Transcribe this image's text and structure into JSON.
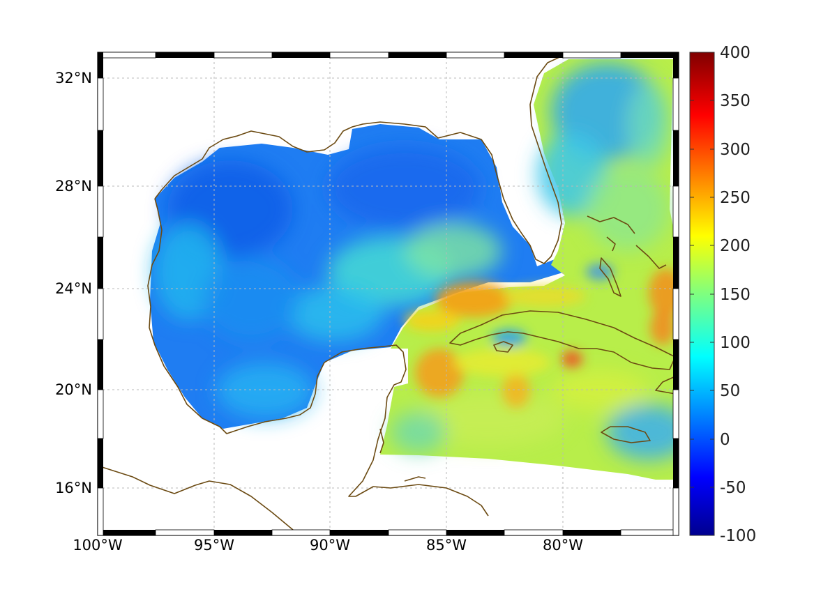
{
  "map": {
    "projection": "mercator",
    "lon_range": [
      -100,
      -75
    ],
    "lat_range": [
      14.3,
      33
    ],
    "grid": true,
    "frame_style": "alternating black-white border",
    "coastline_color": "#6b4a12",
    "lon_ticks": [
      {
        "value": -100,
        "label": "100°W"
      },
      {
        "value": -95,
        "label": "95°W"
      },
      {
        "value": -90,
        "label": "90°W"
      },
      {
        "value": -85,
        "label": "85°W"
      },
      {
        "value": -80,
        "label": "80°W"
      }
    ],
    "lat_ticks": [
      {
        "value": 32,
        "label": "32°N"
      },
      {
        "value": 28,
        "label": "28°N"
      },
      {
        "value": 24,
        "label": "24°N"
      },
      {
        "value": 20,
        "label": "20°N"
      },
      {
        "value": 16,
        "label": "16°N"
      }
    ]
  },
  "colorbar": {
    "colormap": "jet",
    "range": [
      -100,
      400
    ],
    "position": "right",
    "labels": [
      "400",
      "350",
      "300",
      "250",
      "200",
      "150",
      "100",
      "50",
      "0",
      "-50",
      "-100"
    ]
  },
  "field_patches": [
    {
      "name": "western-gulf-low",
      "value": 20
    },
    {
      "name": "central-gulf-low",
      "value": 40
    },
    {
      "name": "eastern-gulf-mid",
      "value": 120
    },
    {
      "name": "yucatan-channel-high",
      "value": 250
    },
    {
      "name": "caribbean-high",
      "value": 230
    },
    {
      "name": "bahamas-high",
      "value": 240
    }
  ]
}
